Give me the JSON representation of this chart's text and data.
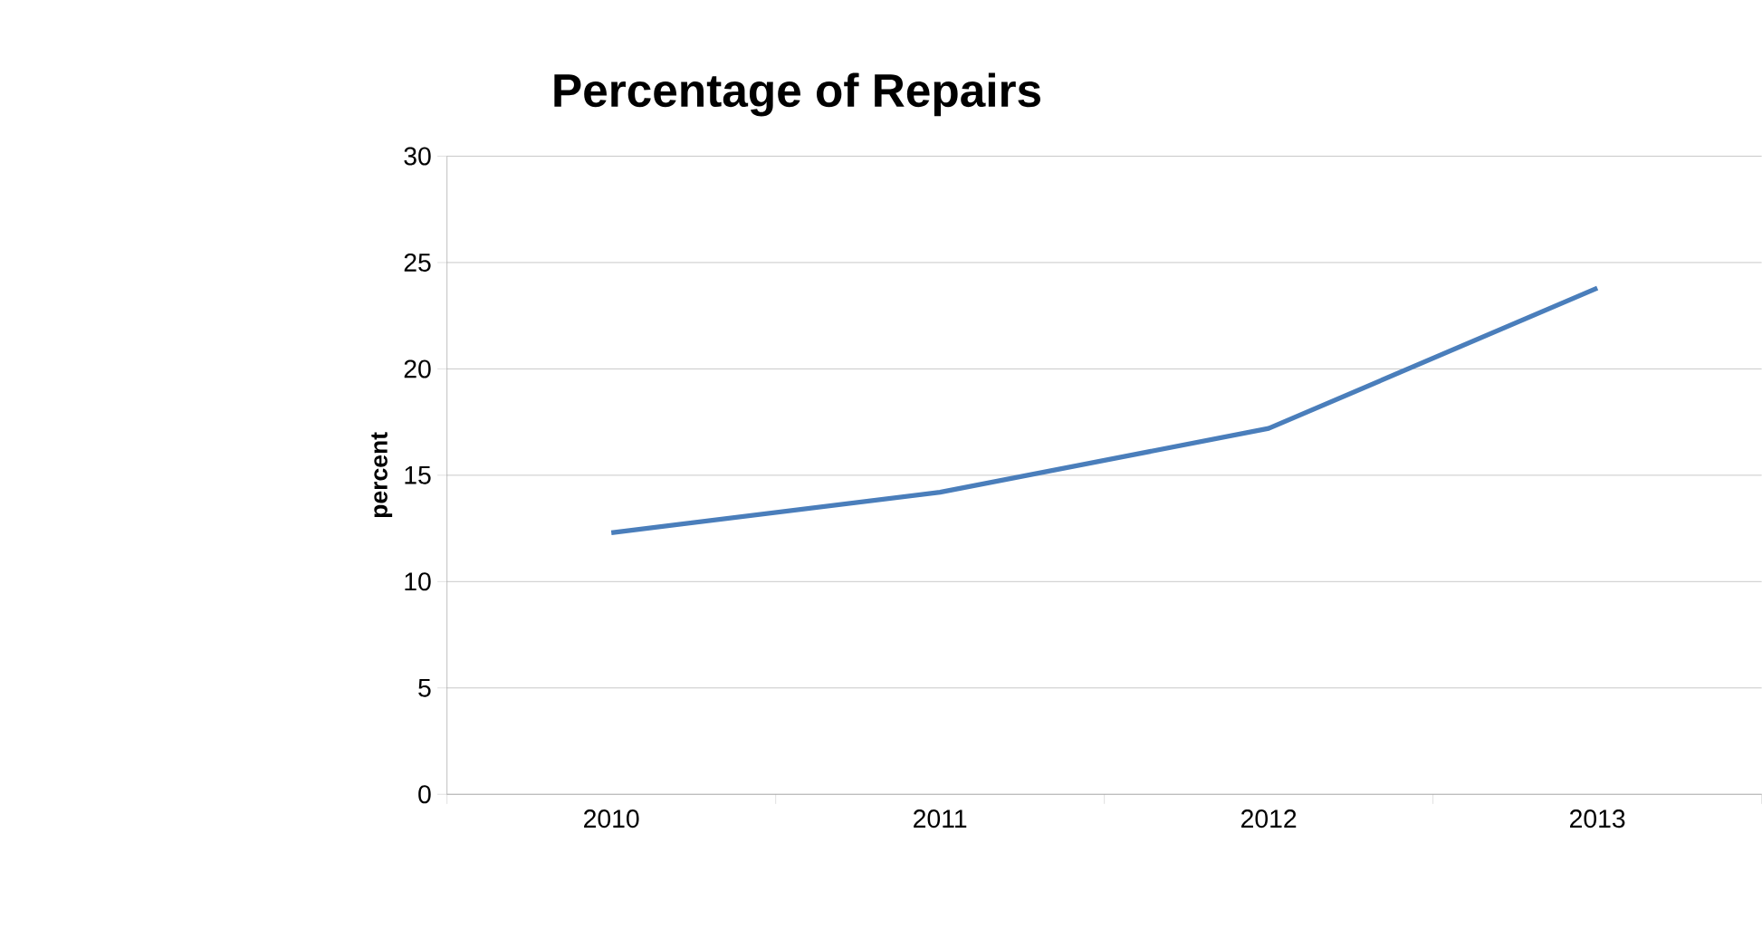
{
  "chart_data": {
    "type": "line",
    "title": "Percentage of Repairs",
    "ylabel": "percent",
    "categories": [
      "2010",
      "2011",
      "2012",
      "2013"
    ],
    "series": [
      {
        "color": "#4a7ebb",
        "values": [
          12.3,
          14.2,
          17.2,
          23.8
        ]
      }
    ],
    "ylim": [
      0,
      30
    ],
    "yticks": [
      0,
      5,
      10,
      15,
      20,
      25,
      30
    ],
    "grid": "y"
  }
}
